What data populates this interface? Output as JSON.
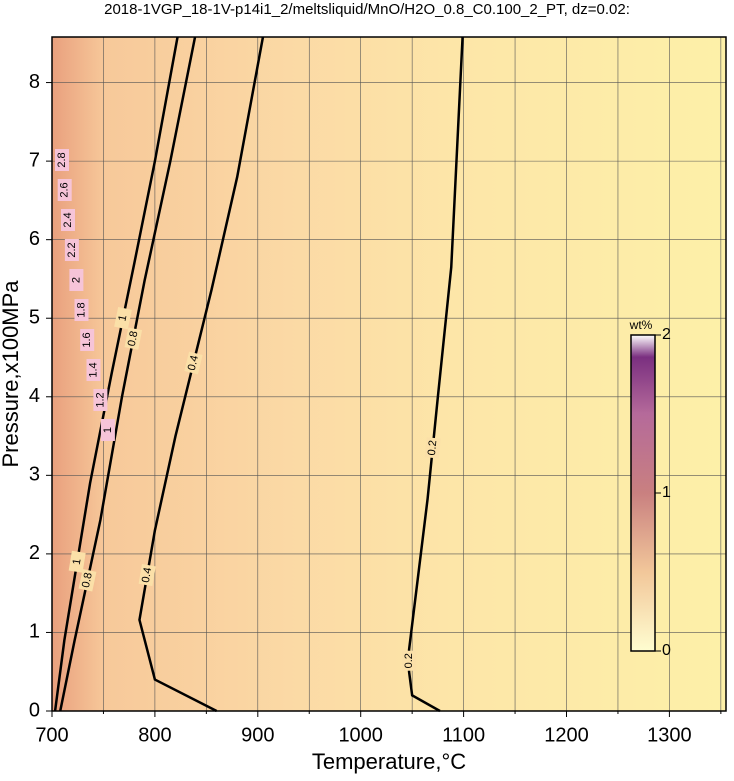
{
  "chart_data": {
    "type": "contour",
    "title": "2018-1VGP_18-1V-p14i1_2/meltsliquid/MnO/H2O_0.8_C0.100_2_PT, dz=0.02:",
    "x_label": "Temperature,°C",
    "y_label": "Pressure,x100MPa",
    "xlim": [
      700,
      1355
    ],
    "ylim": [
      0,
      8.58
    ],
    "xticks": [
      700,
      800,
      900,
      1000,
      1100,
      1200,
      1300
    ],
    "xminorticks": [
      750,
      850,
      950,
      1050,
      1150,
      1250,
      1350
    ],
    "yticks": [
      0,
      1,
      2,
      3,
      4,
      5,
      6,
      7,
      8
    ],
    "grid": true,
    "series": [
      {
        "name": "0.2",
        "color": "#000000",
        "x": [
          1077,
          1050,
          1047,
          1047,
          1065,
          1075,
          1088,
          1099
        ],
        "y": [
          0,
          0.2,
          0.5,
          0.78,
          2.7,
          4,
          5.65,
          8.58
        ]
      },
      {
        "name": "0.4",
        "color": "#000000",
        "x": [
          860,
          800,
          785,
          800,
          820,
          855,
          880,
          905
        ],
        "y": [
          0,
          0.4,
          1.16,
          2.3,
          3.5,
          5.36,
          6.8,
          8.58
        ]
      },
      {
        "name": "0.8",
        "color": "#000000",
        "x": [
          708,
          722,
          747,
          768,
          790,
          815,
          839
        ],
        "y": [
          0,
          0.9,
          2.43,
          4,
          5.48,
          7,
          8.58
        ]
      },
      {
        "name": "1",
        "color": "#000000",
        "x": [
          703,
          712,
          737,
          758,
          780,
          800,
          822
        ],
        "y": [
          0,
          0.9,
          2.9,
          4.3,
          5.7,
          7,
          8.58
        ]
      }
    ],
    "contour_labels": [
      "2.8",
      "2.6",
      "2.4",
      "2.2",
      "2",
      "1.8",
      "1.6",
      "1.4",
      "1.2",
      "1"
    ],
    "colorbar": {
      "label": "wt%",
      "lim": [
        0,
        2
      ],
      "ticks": [
        0,
        1,
        2
      ]
    }
  }
}
